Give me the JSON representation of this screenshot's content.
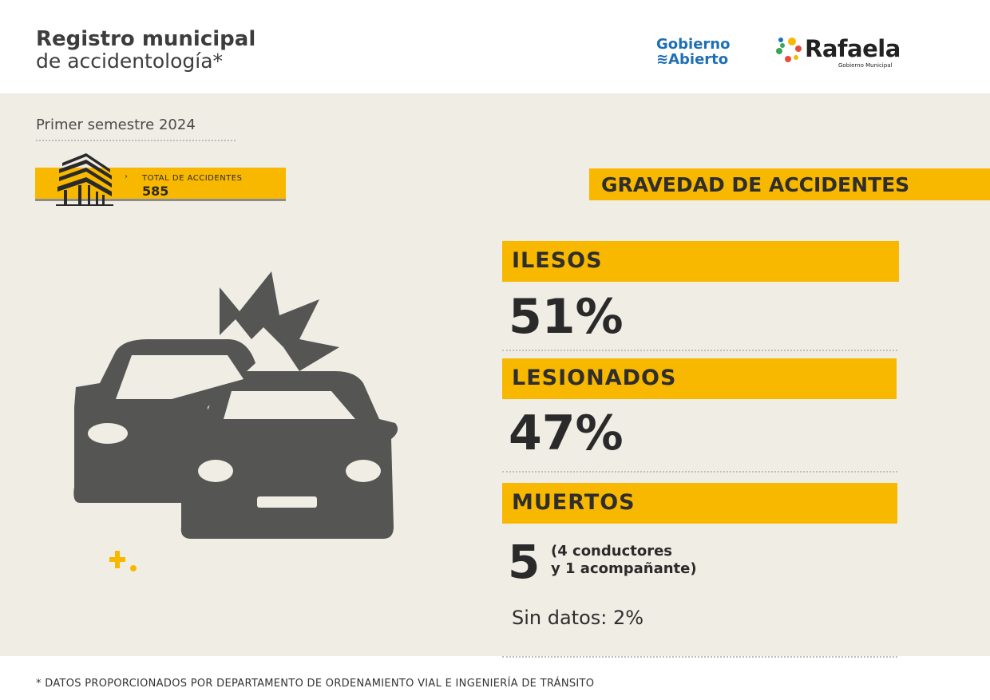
{
  "header": {
    "title_line1": "Registro municipal",
    "title_line2": "de accidentología*",
    "logo_gobierno_line1": "Gobierno",
    "logo_gobierno_line2": "Abierto",
    "logo_rafaela": "Rafaela",
    "logo_rafaela_sub": "Gobierno Municipal"
  },
  "period": "Primer semestre 2024",
  "total": {
    "chevron": "›",
    "label": "TOTAL DE ACCIDENTES",
    "value": "585"
  },
  "gravedad": {
    "title": "GRAVEDAD DE ACCIDENTES",
    "ilesos": {
      "label": "ILESOS",
      "value": "51%"
    },
    "lesionados": {
      "label": "LESIONADOS",
      "value": "47%"
    },
    "muertos": {
      "label": "MUERTOS",
      "value": "5",
      "detail_line1": "(4 conductores",
      "detail_line2": "y 1 acompañante)"
    },
    "sin_datos": "Sin datos: 2%"
  },
  "footer": "* DATOS PROPORCIONADOS POR DEPARTAMENTO DE ORDENAMIENTO VIAL E INGENIERÍA DE TRÁNSITO",
  "colors": {
    "accent": "#f9b800",
    "background": "#f0ede5",
    "car": "#555553"
  }
}
